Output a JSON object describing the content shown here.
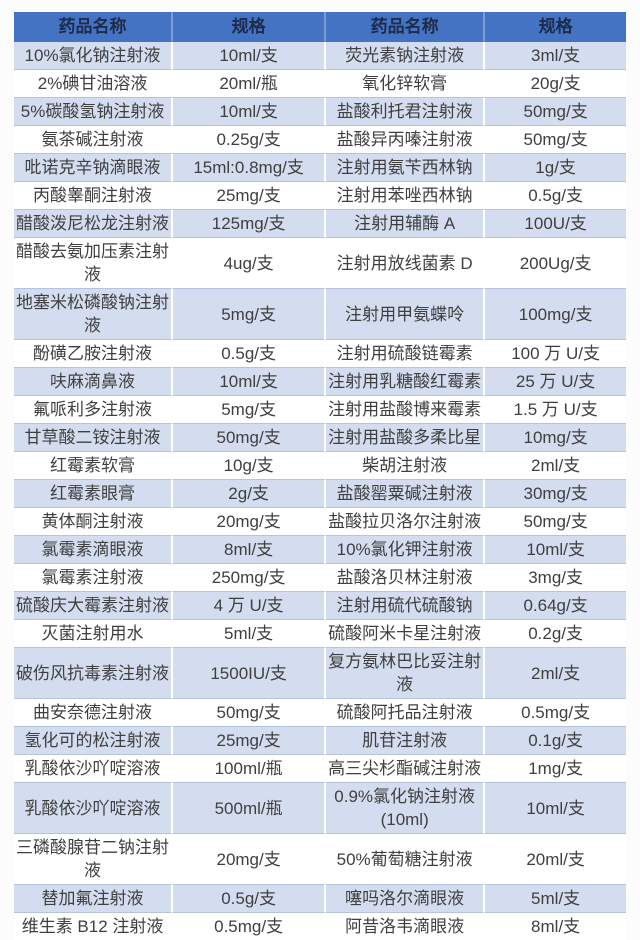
{
  "colors": {
    "header_bg": "#4573c4",
    "header_text": "#1e2b49",
    "band_bg": "#d3ddef",
    "row_bg": "#ffffff",
    "body_text": "#3f3f3f",
    "row_line": "#b6c3de"
  },
  "table": {
    "headers": [
      "药品名称",
      "规格",
      "药品名称",
      "规格"
    ],
    "rows": [
      [
        "10%氯化钠注射液",
        "10ml/支",
        "荧光素钠注射液",
        "3ml/支"
      ],
      [
        "2%碘甘油溶液",
        "20ml/瓶",
        "氧化锌软膏",
        "20g/支"
      ],
      [
        "5%碳酸氢钠注射液",
        "10ml/支",
        "盐酸利托君注射液",
        "50mg/支"
      ],
      [
        "氨茶碱注射液",
        "0.25g/支",
        "盐酸异丙嗪注射液",
        "50mg/支"
      ],
      [
        "吡诺克辛钠滴眼液",
        "15ml:0.8mg/支",
        "注射用氨苄西林钠",
        "1g/支"
      ],
      [
        "丙酸睾酮注射液",
        "25mg/支",
        "注射用苯唑西林钠",
        "0.5g/支"
      ],
      [
        "醋酸泼尼松龙注射液",
        "125mg/支",
        "注射用辅酶 A",
        "100U/支"
      ],
      [
        "醋酸去氨加压素注射液",
        "4ug/支",
        "注射用放线菌素 D",
        "200Ug/支"
      ],
      [
        "地塞米松磷酸钠注射液",
        "5mg/支",
        "注射用甲氨蝶呤",
        "100mg/支"
      ],
      [
        "酚磺乙胺注射液",
        "0.5g/支",
        "注射用硫酸链霉素",
        "100 万 U/支"
      ],
      [
        "呋麻滴鼻液",
        "10ml/支",
        "注射用乳糖酸红霉素",
        "25 万 U/支"
      ],
      [
        "氟哌利多注射液",
        "5mg/支",
        "注射用盐酸博来霉素",
        "1.5 万 U/支"
      ],
      [
        "甘草酸二铵注射液",
        "50mg/支",
        "注射用盐酸多柔比星",
        "10mg/支"
      ],
      [
        "红霉素软膏",
        "10g/支",
        "柴胡注射液",
        "2ml/支"
      ],
      [
        "红霉素眼膏",
        "2g/支",
        "盐酸罂粟碱注射液",
        "30mg/支"
      ],
      [
        "黄体酮注射液",
        "20mg/支",
        "盐酸拉贝洛尔注射液",
        "50mg/支"
      ],
      [
        "氯霉素滴眼液",
        "8ml/支",
        "10%氯化钾注射液",
        "10ml/支"
      ],
      [
        "氯霉素注射液",
        "250mg/支",
        "盐酸洛贝林注射液",
        "3mg/支"
      ],
      [
        "硫酸庆大霉素注射液",
        "4 万 U/支",
        "注射用硫代硫酸钠",
        "0.64g/支"
      ],
      [
        "灭菌注射用水",
        "5ml/支",
        "硫酸阿米卡星注射液",
        "0.2g/支"
      ],
      [
        "破伤风抗毒素注射液",
        "1500IU/支",
        "复方氨林巴比妥注射液",
        "2ml/支"
      ],
      [
        "曲安奈德注射液",
        "50mg/支",
        "硫酸阿托品注射液",
        "0.5mg/支"
      ],
      [
        "氢化可的松注射液",
        "25mg/支",
        "肌苷注射液",
        "0.1g/支"
      ],
      [
        "乳酸依沙吖啶溶液",
        "100ml/瓶",
        "高三尖杉酯碱注射液",
        "1mg/支"
      ],
      [
        "乳酸依沙吖啶溶液",
        "500ml/瓶",
        "0.9%氯化钠注射液 (10ml)",
        "10ml/支"
      ],
      [
        "三磷酸腺苷二钠注射液",
        "20mg/支",
        "50%葡萄糖注射液",
        "20ml/支"
      ],
      [
        "替加氟注射液",
        "0.5g/支",
        "噻吗洛尔滴眼液",
        "5ml/支"
      ],
      [
        "维生素 B12 注射液",
        "0.5mg/支",
        "阿昔洛韦滴眼液",
        "8ml/支"
      ]
    ]
  }
}
